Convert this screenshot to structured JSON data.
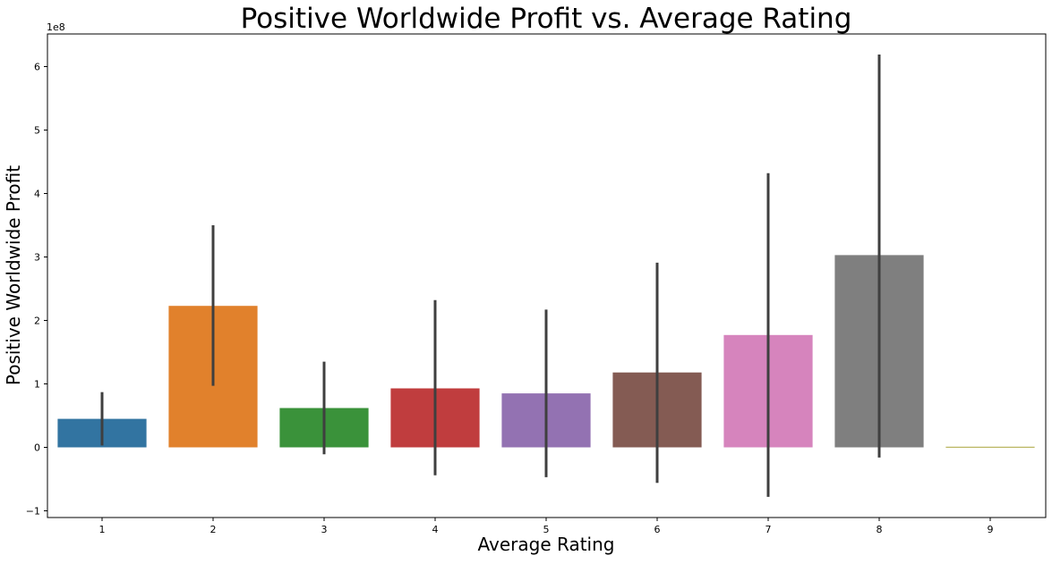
{
  "chart_data": {
    "type": "bar",
    "title": "Positive Worldwide Profit vs. Average Rating",
    "xlabel": "Average Rating",
    "ylabel": "Positive Worldwide Profit",
    "y_offset_label": "1e8",
    "ylim": [
      -1.1,
      6.5
    ],
    "y_ticks": [
      -1,
      0,
      1,
      2,
      3,
      4,
      5,
      6
    ],
    "y_tick_labels": [
      "−1",
      "0",
      "1",
      "2",
      "3",
      "4",
      "5",
      "6"
    ],
    "categories": [
      "1",
      "2",
      "3",
      "4",
      "5",
      "6",
      "7",
      "8",
      "9"
    ],
    "values": [
      0.45,
      2.23,
      0.62,
      0.93,
      0.85,
      1.18,
      1.77,
      3.03,
      0.01
    ],
    "error_low": [
      0.03,
      0.97,
      -0.11,
      -0.44,
      -0.47,
      -0.56,
      -0.78,
      -0.16,
      null
    ],
    "error_high": [
      0.87,
      3.5,
      1.35,
      2.32,
      2.17,
      2.91,
      4.32,
      6.19,
      null
    ],
    "colors": [
      "#3274a1",
      "#e1812c",
      "#3a923a",
      "#c03d3e",
      "#9372b2",
      "#845b53",
      "#d684bd",
      "#7f7f7f",
      "#a9a53b"
    ],
    "error_color": "#3f3f3f",
    "grid": false,
    "legend": "none"
  }
}
